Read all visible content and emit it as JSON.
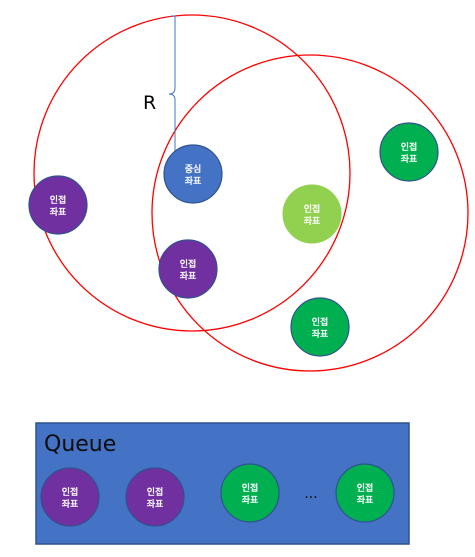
{
  "radius_label": "R",
  "node_label_line1": "인접",
  "node_label_line2": "좌표",
  "center_label_line1": "중심",
  "center_label_line2": "좌표",
  "queue": {
    "title": "Queue",
    "ellipsis": "...",
    "items": [
      {
        "kind": "purple"
      },
      {
        "kind": "purple"
      },
      {
        "kind": "green"
      },
      {
        "kind": "green"
      }
    ]
  },
  "colors": {
    "range_circle": "#ff0000",
    "center": "#4472c4",
    "purple": "#7030a0",
    "green": "#00b050",
    "light_green": "#92d050",
    "queue_fill": "#4472c4",
    "queue_border": "#2f528f",
    "node_border": "#2f528f",
    "bracket": "#4472c4"
  }
}
